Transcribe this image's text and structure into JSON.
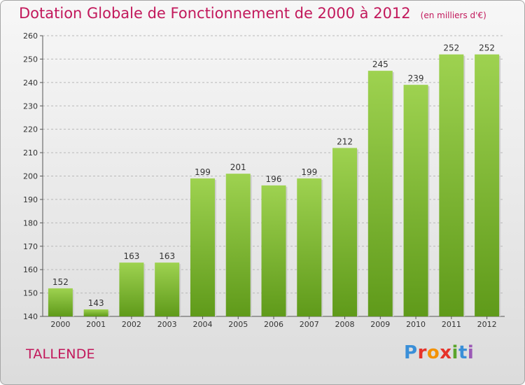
{
  "title": "Dotation Globale de Fonctionnement de 2000 à 2012",
  "unit": "(en milliers d'€)",
  "commune": "TALLENDE",
  "logo": {
    "text": "Proxiti",
    "letters": [
      "P",
      "r",
      "o",
      "x",
      "i",
      "t",
      "i"
    ],
    "colors": [
      "#3a8fd8",
      "#e6332a",
      "#f39200",
      "#e6332a",
      "#5aa52b",
      "#3a8fd8",
      "#9b59b6"
    ]
  },
  "colors": {
    "accent": "#c2185b",
    "bar_top": "#9ed250",
    "bar_bottom": "#5f9a1a",
    "grid": "#b8b8b8"
  },
  "chart_data": {
    "type": "bar",
    "categories": [
      "2000",
      "2001",
      "2002",
      "2003",
      "2004",
      "2005",
      "2006",
      "2007",
      "2008",
      "2009",
      "2010",
      "2011",
      "2012"
    ],
    "values": [
      152,
      143,
      163,
      163,
      199,
      201,
      196,
      199,
      212,
      245,
      239,
      252,
      252
    ],
    "ylim": [
      140,
      260
    ],
    "yticks": [
      140,
      150,
      160,
      170,
      180,
      190,
      200,
      210,
      220,
      230,
      240,
      250,
      260
    ],
    "grid": true,
    "data_labels": true
  }
}
